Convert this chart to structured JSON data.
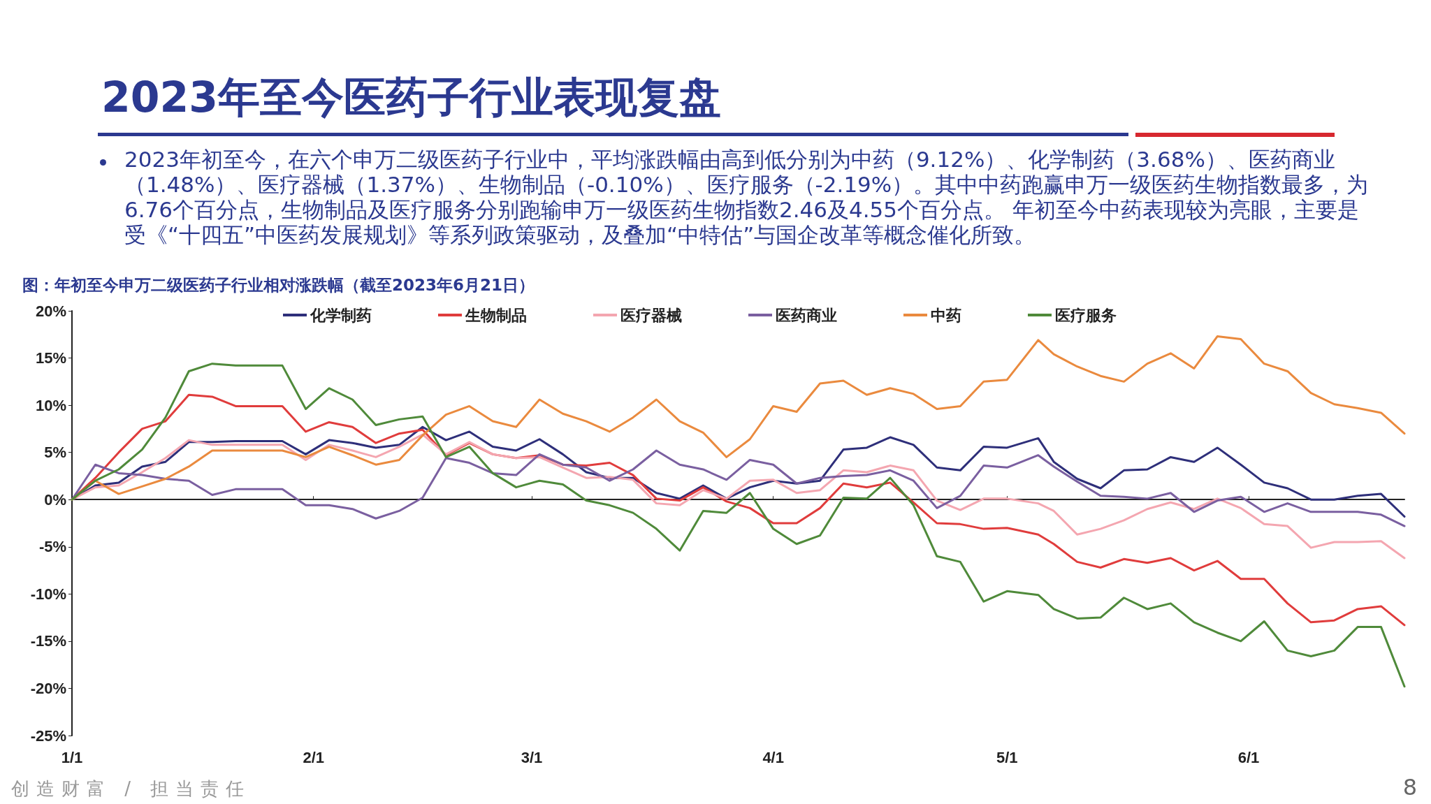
{
  "chart_data": {
    "type": "line",
    "title": "2023年至今医药子行业表现复盘",
    "subtitle": "2023年初至今，在六个申万二级医药子行业中，平均涨跌幅由高到低分别为中药（9.12%）、化学制药（3.68%）、医药商业（1.48%）、医疗器械（1.37%）、生物制品（-0.10%）、医疗服务（-2.19%）。其中中药跑赢申万一级医药生物指数最多，为6.76个百分点，生物制品及医疗服务分别跑输申万一级医药生物指数2.46及4.55个百分点。 年初至今中药表现较为亮眼，主要是受《“十四五”中医药发展规划》等系列政策驱动，及叠加“中特估”与国企改革等概念催化所致。",
    "annotations": [
      "图：年初至今申万二级医药子行业相对涨跌幅（截至2023年6月21日）",
      "创造财富 / 担当责任",
      "8"
    ],
    "x": [
      "2023-01-01",
      "2023-01-04",
      "2023-01-07",
      "2023-01-10",
      "2023-01-13",
      "2023-01-16",
      "2023-01-19",
      "2023-01-22",
      "2023-01-25",
      "2023-01-28",
      "2023-01-31",
      "2023-02-03",
      "2023-02-06",
      "2023-02-09",
      "2023-02-12",
      "2023-02-15",
      "2023-02-18",
      "2023-02-21",
      "2023-02-24",
      "2023-02-27",
      "2023-03-02",
      "2023-03-05",
      "2023-03-08",
      "2023-03-11",
      "2023-03-14",
      "2023-03-17",
      "2023-03-20",
      "2023-03-23",
      "2023-03-26",
      "2023-03-29",
      "2023-04-01",
      "2023-04-04",
      "2023-04-07",
      "2023-04-10",
      "2023-04-13",
      "2023-04-16",
      "2023-04-19",
      "2023-04-22",
      "2023-04-25",
      "2023-04-28",
      "2023-05-01",
      "2023-05-05",
      "2023-05-07",
      "2023-05-10",
      "2023-05-13",
      "2023-05-16",
      "2023-05-19",
      "2023-05-22",
      "2023-05-25",
      "2023-05-28",
      "2023-05-31",
      "2023-06-03",
      "2023-06-06",
      "2023-06-09",
      "2023-06-12",
      "2023-06-15",
      "2023-06-18",
      "2023-06-21"
    ],
    "series": [
      {
        "name": "化学制药",
        "color": "#2e2f7a",
        "values": [
          0,
          1.5,
          1.8,
          3.5,
          4.0,
          6.1,
          6.1,
          6.2,
          6.2,
          6.2,
          4.8,
          6.3,
          6.0,
          5.5,
          5.8,
          7.7,
          6.3,
          7.2,
          5.6,
          5.2,
          6.4,
          4.8,
          2.9,
          2.3,
          2.3,
          0.7,
          0.1,
          1.5,
          0.1,
          1.3,
          2.0,
          1.7,
          2.0,
          5.3,
          5.5,
          6.6,
          5.8,
          3.4,
          3.1,
          5.6,
          5.5,
          6.5,
          4.0,
          2.2,
          1.2,
          3.1,
          3.2,
          4.5,
          4.0,
          5.5,
          3.7,
          1.8,
          1.2,
          0.0,
          0.0,
          0.4,
          0.6,
          -1.8
        ]
      },
      {
        "name": "生物制品",
        "color": "#e03c3c",
        "values": [
          0,
          2.3,
          5.0,
          7.5,
          8.3,
          11.1,
          10.9,
          9.9,
          9.9,
          9.9,
          7.2,
          8.2,
          7.7,
          6.0,
          7.0,
          7.4,
          4.7,
          6.0,
          4.8,
          4.4,
          4.7,
          3.7,
          3.6,
          3.9,
          2.6,
          0.1,
          -0.1,
          1.3,
          -0.2,
          -0.9,
          -2.5,
          -2.5,
          -0.9,
          1.7,
          1.3,
          1.8,
          -0.3,
          -2.5,
          -2.6,
          -3.1,
          -3.0,
          -3.7,
          -4.7,
          -6.6,
          -7.2,
          -6.3,
          -6.7,
          -6.2,
          -7.5,
          -6.5,
          -8.4,
          -8.4,
          -11.0,
          -13.0,
          -12.8,
          -11.6,
          -11.3,
          -13.3
        ]
      },
      {
        "name": "医疗器械",
        "color": "#f4a6b0",
        "values": [
          0,
          1.3,
          1.5,
          2.9,
          4.4,
          6.3,
          5.8,
          5.8,
          5.8,
          5.8,
          4.2,
          5.8,
          5.2,
          4.5,
          5.6,
          6.9,
          4.8,
          6.1,
          4.8,
          4.4,
          4.5,
          3.4,
          2.3,
          2.4,
          2.1,
          -0.4,
          -0.6,
          1.0,
          0.1,
          2.0,
          2.1,
          0.7,
          1.0,
          3.1,
          2.9,
          3.6,
          3.1,
          -0.1,
          -1.1,
          0.1,
          0.1,
          -0.4,
          -1.2,
          -3.7,
          -3.1,
          -2.2,
          -1.0,
          -0.3,
          -1.0,
          0.1,
          -0.9,
          -2.6,
          -2.8,
          -5.1,
          -4.5,
          -4.5,
          -4.4,
          -6.2
        ]
      },
      {
        "name": "医药商业",
        "color": "#7a5fa0",
        "values": [
          0,
          3.7,
          2.8,
          2.6,
          2.2,
          2.0,
          0.5,
          1.1,
          1.1,
          1.1,
          -0.6,
          -0.6,
          -1.0,
          -2.0,
          -1.2,
          0.2,
          4.4,
          3.9,
          2.8,
          2.6,
          4.8,
          3.7,
          3.4,
          2.0,
          3.2,
          5.2,
          3.7,
          3.2,
          2.1,
          4.2,
          3.7,
          1.7,
          2.3,
          2.5,
          2.6,
          3.1,
          2.0,
          -0.9,
          0.4,
          3.6,
          3.4,
          4.7,
          3.5,
          1.9,
          0.4,
          0.3,
          0.1,
          0.7,
          -1.3,
          -0.1,
          0.3,
          -1.3,
          -0.4,
          -1.3,
          -1.3,
          -1.3,
          -1.6,
          -2.8
        ]
      },
      {
        "name": "中药",
        "color": "#ea8a3e",
        "values": [
          0,
          2.0,
          0.6,
          1.4,
          2.2,
          3.5,
          5.2,
          5.2,
          5.2,
          5.2,
          4.5,
          5.6,
          4.7,
          3.7,
          4.2,
          6.8,
          9.0,
          9.9,
          8.3,
          7.7,
          10.6,
          9.1,
          8.3,
          7.2,
          8.7,
          10.6,
          8.3,
          7.1,
          4.5,
          6.4,
          9.9,
          9.3,
          12.3,
          12.6,
          11.1,
          11.8,
          11.2,
          9.6,
          9.9,
          12.5,
          12.7,
          16.9,
          15.4,
          14.1,
          13.1,
          12.5,
          14.4,
          15.5,
          13.9,
          17.3,
          17.0,
          14.4,
          13.6,
          11.3,
          10.1,
          9.7,
          9.2,
          7.0
        ]
      },
      {
        "name": "医疗服务",
        "color": "#4f8a3a",
        "values": [
          0,
          2.0,
          3.2,
          5.3,
          8.7,
          13.6,
          14.4,
          14.2,
          14.2,
          14.2,
          9.6,
          11.8,
          10.6,
          7.9,
          8.5,
          8.8,
          4.5,
          5.6,
          2.8,
          1.3,
          2.0,
          1.6,
          -0.1,
          -0.6,
          -1.4,
          -3.1,
          -5.4,
          -1.2,
          -1.4,
          0.7,
          -3.1,
          -4.7,
          -3.8,
          0.2,
          0.1,
          2.3,
          -0.6,
          -6.0,
          -6.6,
          -10.8,
          -9.7,
          -10.1,
          -11.6,
          -12.6,
          -12.5,
          -10.4,
          -11.6,
          -11.0,
          -13.0,
          -14.1,
          -15.0,
          -12.9,
          -16.0,
          -16.6,
          -16.0,
          -13.5,
          -13.5,
          -19.8
        ]
      }
    ],
    "xlim": [
      "2023-01-01",
      "2023-06-21"
    ],
    "xticks": [
      {
        "value": "2023-01-01",
        "label": "1/1"
      },
      {
        "value": "2023-02-01",
        "label": "2/1"
      },
      {
        "value": "2023-03-01",
        "label": "3/1"
      },
      {
        "value": "2023-04-01",
        "label": "4/1"
      },
      {
        "value": "2023-05-01",
        "label": "5/1"
      },
      {
        "value": "2023-06-01",
        "label": "6/1"
      }
    ],
    "ylim": [
      -25,
      20
    ],
    "yticks": [
      {
        "value": -25,
        "label": "-25%"
      },
      {
        "value": -20,
        "label": "-20%"
      },
      {
        "value": -15,
        "label": "-15%"
      },
      {
        "value": -10,
        "label": "-10%"
      },
      {
        "value": -5,
        "label": "-5%"
      },
      {
        "value": 0,
        "label": "0%"
      },
      {
        "value": 5,
        "label": "5%"
      },
      {
        "value": 10,
        "label": "10%"
      },
      {
        "value": 15,
        "label": "15%"
      },
      {
        "value": 20,
        "label": "20%"
      }
    ],
    "legend": "top",
    "marker": "none",
    "line_style": "solid"
  }
}
